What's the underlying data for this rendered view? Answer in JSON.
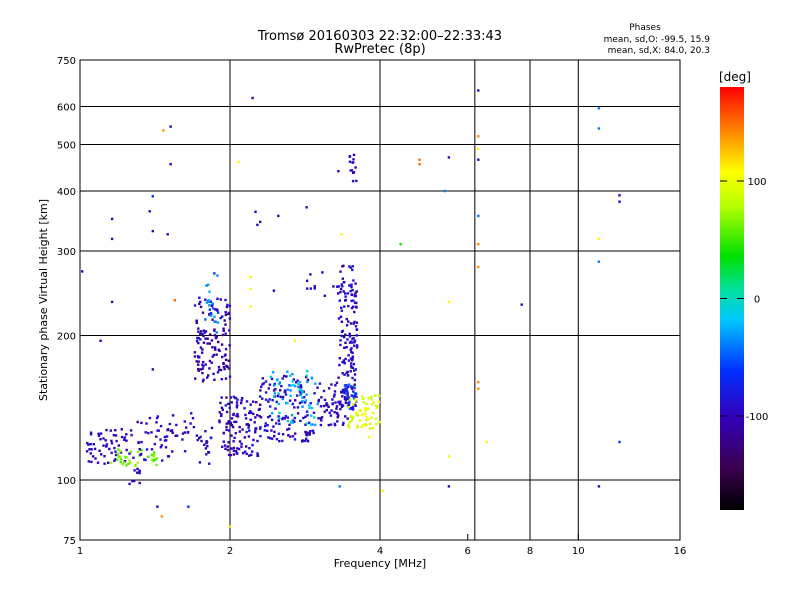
{
  "chart_data": {
    "type": "scatter",
    "title": "Tromsø 20160303 22:32:00–22:33:43",
    "subtitle": "RwPretec (8p)",
    "xlabel": "Frequency [MHz]",
    "ylabel": "Stationary phase Virtual Height [km]",
    "x_scale": "log",
    "y_scale": "log",
    "xlim": [
      1,
      16
    ],
    "ylim": [
      75,
      750
    ],
    "x_ticks": [
      1,
      2,
      4,
      6,
      8,
      10,
      16
    ],
    "y_ticks": [
      75,
      100,
      200,
      300,
      400,
      500,
      600,
      750
    ],
    "x_grid": [
      2,
      4,
      6.2,
      8,
      10
    ],
    "y_grid": [
      100,
      200,
      300,
      400,
      500,
      600
    ],
    "grid": true,
    "stats": {
      "heading": "Phases",
      "line1": "mean, sd,O: -99.5, 15.9",
      "line2": "mean, sd,X:  84.0, 20.3"
    },
    "colorbar": {
      "label": "[deg]",
      "min": -180,
      "max": 180,
      "ticks": [
        100,
        0,
        -100
      ],
      "colormap": "rainbow"
    },
    "point_color_value": "phase_deg",
    "clusters": [
      {
        "x": [
          1.03,
          1.28
        ],
        "y": [
          108,
          128
        ],
        "n": 60,
        "phase": [
          -110,
          -85
        ]
      },
      {
        "x": [
          1.15,
          1.45
        ],
        "y": [
          107,
          116
        ],
        "n": 35,
        "phase": [
          45,
          80
        ]
      },
      {
        "x": [
          1.25,
          1.32
        ],
        "y": [
          97,
          106
        ],
        "n": 10,
        "phase": [
          -110,
          -85
        ]
      },
      {
        "x": [
          1.3,
          1.85
        ],
        "y": [
          108,
          138
        ],
        "n": 80,
        "phase": [
          -115,
          -80
        ]
      },
      {
        "x": [
          1.7,
          2.0
        ],
        "y": [
          160,
          240
        ],
        "n": 130,
        "phase": [
          -120,
          -85
        ]
      },
      {
        "x": [
          1.78,
          1.9
        ],
        "y": [
          200,
          270
        ],
        "n": 20,
        "phase": [
          -60,
          -20
        ]
      },
      {
        "x": [
          1.9,
          2.3
        ],
        "y": [
          112,
          150
        ],
        "n": 120,
        "phase": [
          -115,
          -80
        ]
      },
      {
        "x": [
          2.3,
          3.0
        ],
        "y": [
          120,
          165
        ],
        "n": 130,
        "phase": [
          -110,
          -75
        ]
      },
      {
        "x": [
          2.4,
          3.0
        ],
        "y": [
          130,
          170
        ],
        "n": 60,
        "phase": [
          -40,
          0
        ]
      },
      {
        "x": [
          3.0,
          3.45
        ],
        "y": [
          130,
          160
        ],
        "n": 60,
        "phase": [
          -110,
          -85
        ]
      },
      {
        "x": [
          3.3,
          3.6
        ],
        "y": [
          140,
          280
        ],
        "n": 160,
        "phase": [
          -110,
          -80
        ]
      },
      {
        "x": [
          3.4,
          3.6
        ],
        "y": [
          140,
          160
        ],
        "n": 20,
        "phase": [
          -80,
          -40
        ]
      },
      {
        "x": [
          3.45,
          4.0
        ],
        "y": [
          128,
          150
        ],
        "n": 60,
        "phase": [
          80,
          110
        ]
      },
      {
        "x": [
          3.48,
          3.6
        ],
        "y": [
          415,
          480
        ],
        "n": 14,
        "phase": [
          -115,
          -90
        ]
      },
      {
        "x": [
          2.85,
          3.3
        ],
        "y": [
          238,
          272
        ],
        "n": 10,
        "phase": [
          -110,
          -90
        ]
      }
    ],
    "points": [
      {
        "x": 1.01,
        "y": 272,
        "phase": -95
      },
      {
        "x": 1.16,
        "y": 350,
        "phase": -100
      },
      {
        "x": 1.16,
        "y": 318,
        "phase": -100
      },
      {
        "x": 1.16,
        "y": 235,
        "phase": -100
      },
      {
        "x": 1.38,
        "y": 363,
        "phase": -100
      },
      {
        "x": 1.4,
        "y": 390,
        "phase": -60
      },
      {
        "x": 1.47,
        "y": 535,
        "phase": 140
      },
      {
        "x": 1.52,
        "y": 545,
        "phase": -100
      },
      {
        "x": 1.52,
        "y": 455,
        "phase": -100
      },
      {
        "x": 1.55,
        "y": 237,
        "phase": 150
      },
      {
        "x": 1.5,
        "y": 325,
        "phase": -100
      },
      {
        "x": 1.4,
        "y": 330,
        "phase": -100
      },
      {
        "x": 1.4,
        "y": 170,
        "phase": -105
      },
      {
        "x": 1.43,
        "y": 88,
        "phase": -105
      },
      {
        "x": 1.46,
        "y": 84,
        "phase": 140
      },
      {
        "x": 1.65,
        "y": 88,
        "phase": -60
      },
      {
        "x": 1.1,
        "y": 195,
        "phase": -100
      },
      {
        "x": 2.08,
        "y": 460,
        "phase": 110
      },
      {
        "x": 2.22,
        "y": 625,
        "phase": -100
      },
      {
        "x": 2.25,
        "y": 362,
        "phase": -100
      },
      {
        "x": 2.27,
        "y": 340,
        "phase": -100
      },
      {
        "x": 2.3,
        "y": 345,
        "phase": -100
      },
      {
        "x": 2.2,
        "y": 265,
        "phase": 110
      },
      {
        "x": 2.2,
        "y": 250,
        "phase": 110
      },
      {
        "x": 2.45,
        "y": 248,
        "phase": -100
      },
      {
        "x": 2.5,
        "y": 355,
        "phase": -100
      },
      {
        "x": 2.85,
        "y": 370,
        "phase": -100
      },
      {
        "x": 2.7,
        "y": 195,
        "phase": 110
      },
      {
        "x": 2.2,
        "y": 230,
        "phase": 110
      },
      {
        "x": 2.0,
        "y": 80,
        "phase": 110
      },
      {
        "x": 3.32,
        "y": 97,
        "phase": -40
      },
      {
        "x": 3.35,
        "y": 325,
        "phase": 110
      },
      {
        "x": 3.3,
        "y": 440,
        "phase": -100
      },
      {
        "x": 3.1,
        "y": 242,
        "phase": -100
      },
      {
        "x": 3.8,
        "y": 123,
        "phase": 110
      },
      {
        "x": 4.05,
        "y": 95,
        "phase": 110
      },
      {
        "x": 4.4,
        "y": 310,
        "phase": 40
      },
      {
        "x": 4.8,
        "y": 465,
        "phase": 150
      },
      {
        "x": 4.8,
        "y": 455,
        "phase": 150
      },
      {
        "x": 5.5,
        "y": 470,
        "phase": -100
      },
      {
        "x": 5.5,
        "y": 235,
        "phase": 110
      },
      {
        "x": 5.5,
        "y": 112,
        "phase": 110
      },
      {
        "x": 5.5,
        "y": 97,
        "phase": -100
      },
      {
        "x": 5.4,
        "y": 400,
        "phase": -40
      },
      {
        "x": 6.3,
        "y": 648,
        "phase": -100
      },
      {
        "x": 6.3,
        "y": 520,
        "phase": 140
      },
      {
        "x": 6.3,
        "y": 490,
        "phase": 110
      },
      {
        "x": 6.3,
        "y": 465,
        "phase": -100
      },
      {
        "x": 6.3,
        "y": 355,
        "phase": -40
      },
      {
        "x": 6.3,
        "y": 310,
        "phase": 140
      },
      {
        "x": 6.3,
        "y": 278,
        "phase": 140
      },
      {
        "x": 6.3,
        "y": 160,
        "phase": 140
      },
      {
        "x": 6.3,
        "y": 155,
        "phase": 140
      },
      {
        "x": 6.55,
        "y": 120,
        "phase": 110
      },
      {
        "x": 7.7,
        "y": 232,
        "phase": -100
      },
      {
        "x": 11.0,
        "y": 595,
        "phase": -40
      },
      {
        "x": 11.0,
        "y": 540,
        "phase": -40
      },
      {
        "x": 11.0,
        "y": 318,
        "phase": 110
      },
      {
        "x": 11.0,
        "y": 285,
        "phase": -40
      },
      {
        "x": 11.0,
        "y": 97,
        "phase": -100
      },
      {
        "x": 12.1,
        "y": 392,
        "phase": -100
      },
      {
        "x": 12.1,
        "y": 380,
        "phase": -100
      },
      {
        "x": 12.1,
        "y": 120,
        "phase": -60
      }
    ]
  }
}
